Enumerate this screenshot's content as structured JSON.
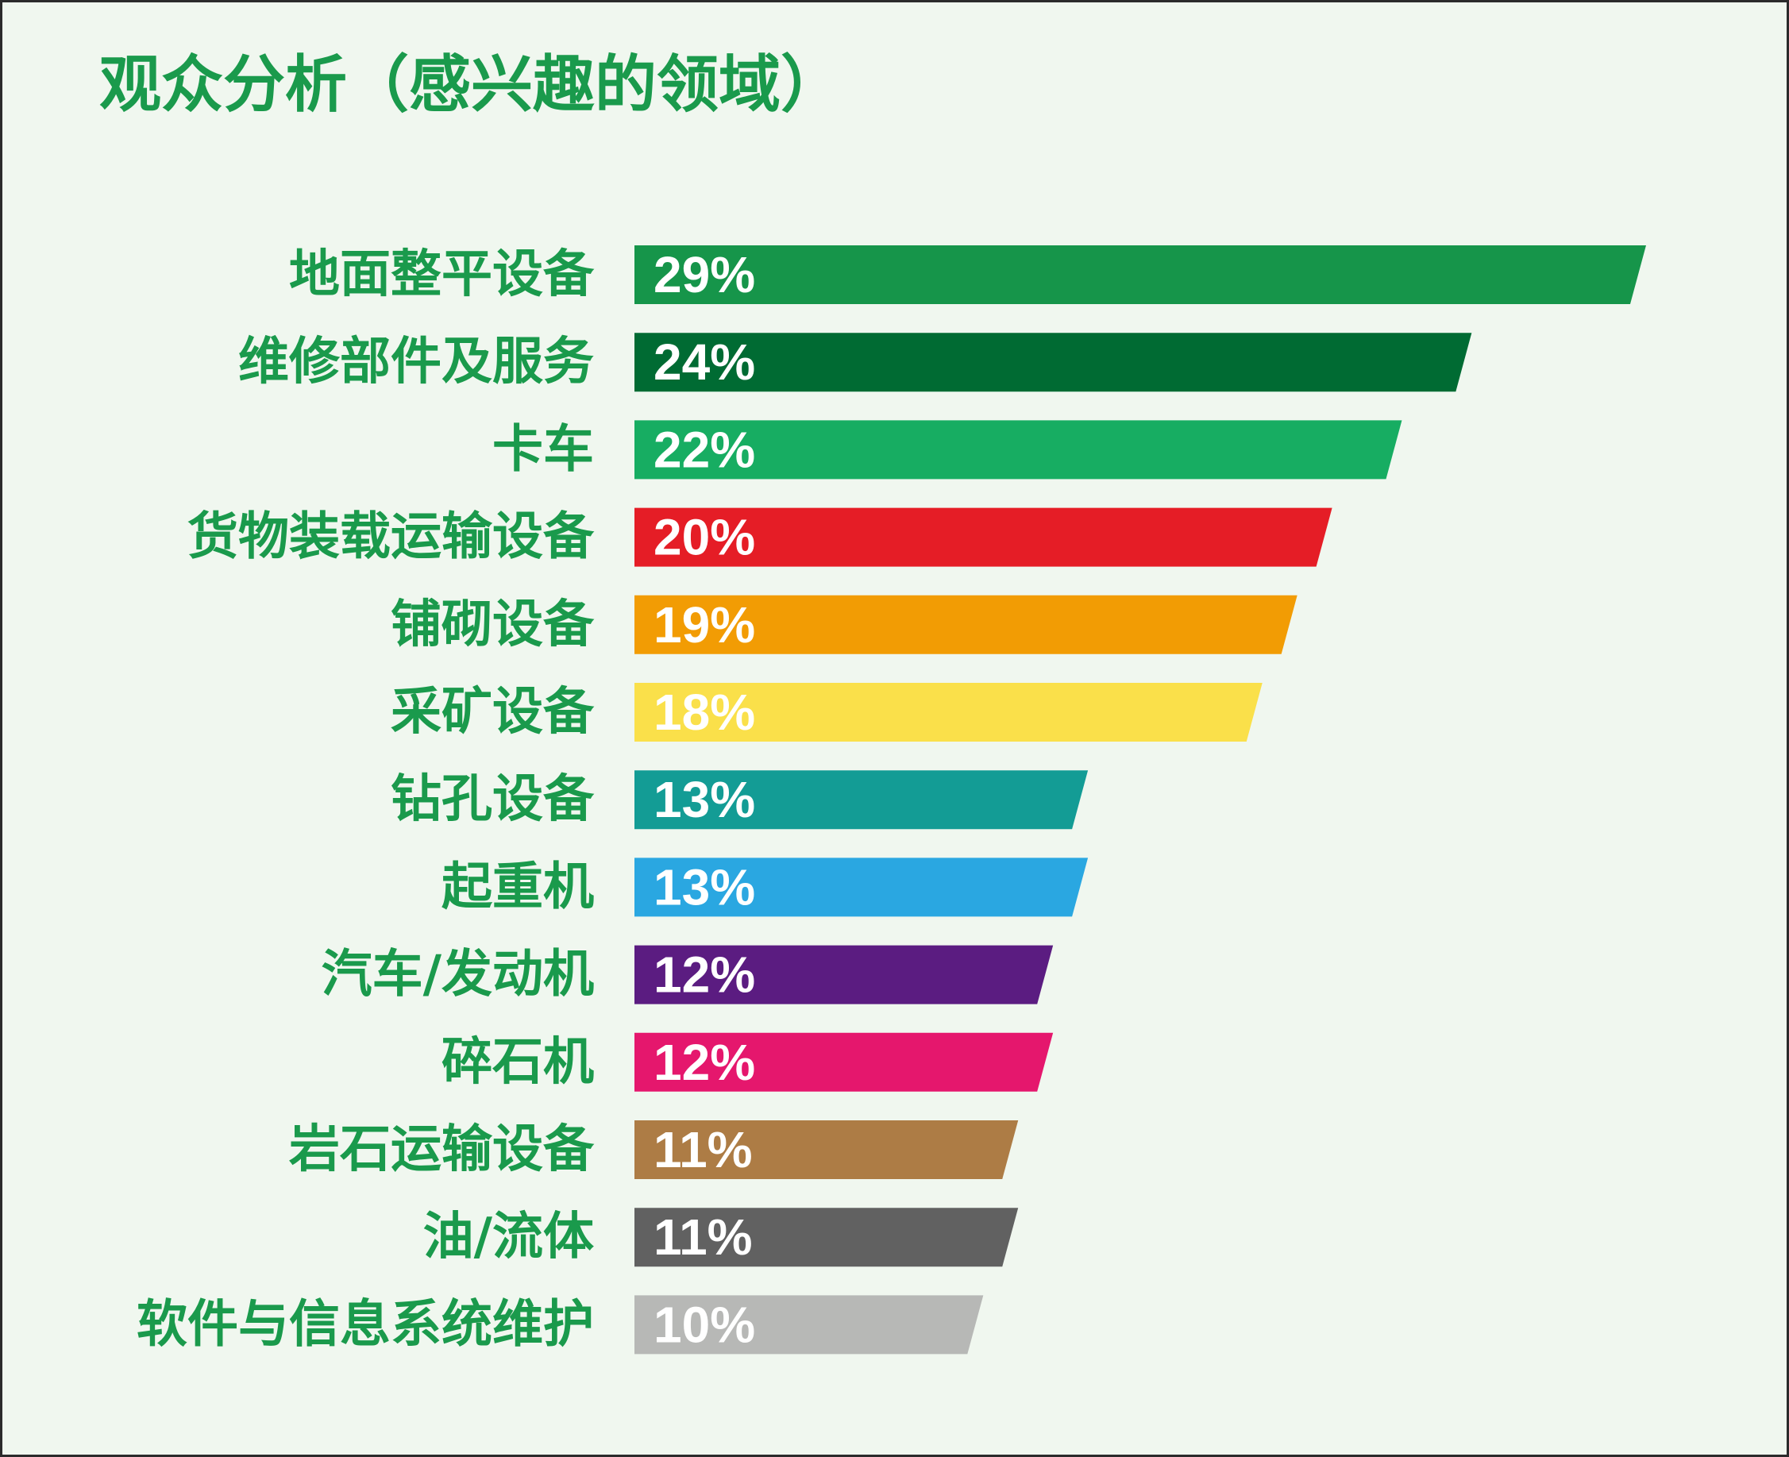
{
  "chart_data": {
    "type": "bar",
    "orientation": "horizontal",
    "title": "观众分析（感兴趣的领域）",
    "categories": [
      "地面整平设备",
      "维修部件及服务",
      "卡车",
      "货物装载运输设备",
      "铺砌设备",
      "采矿设备",
      "钻孔设备",
      "起重机",
      "汽车/发动机",
      "碎石机",
      "岩石运输设备",
      "油/流体",
      "软件与信息系统维护"
    ],
    "values": [
      29,
      24,
      22,
      20,
      19,
      18,
      13,
      13,
      12,
      12,
      11,
      11,
      10
    ],
    "value_labels": [
      "29%",
      "24%",
      "22%",
      "20%",
      "19%",
      "18%",
      "13%",
      "13%",
      "12%",
      "12%",
      "11%",
      "11%",
      "10%"
    ],
    "unit": "%",
    "bar_colors": [
      "#16954a",
      "#006b33",
      "#17ad62",
      "#e51d26",
      "#f29c04",
      "#fae04a",
      "#139c95",
      "#2aa7e1",
      "#5b1c81",
      "#e5176d",
      "#ad7c45",
      "#616161",
      "#b7b8b6"
    ],
    "label_color": "#1a9a4c",
    "value_label_color": "#ffffff",
    "background_color": "#f0f7ef",
    "axes_visible": false,
    "grid": false,
    "legend": "none"
  }
}
